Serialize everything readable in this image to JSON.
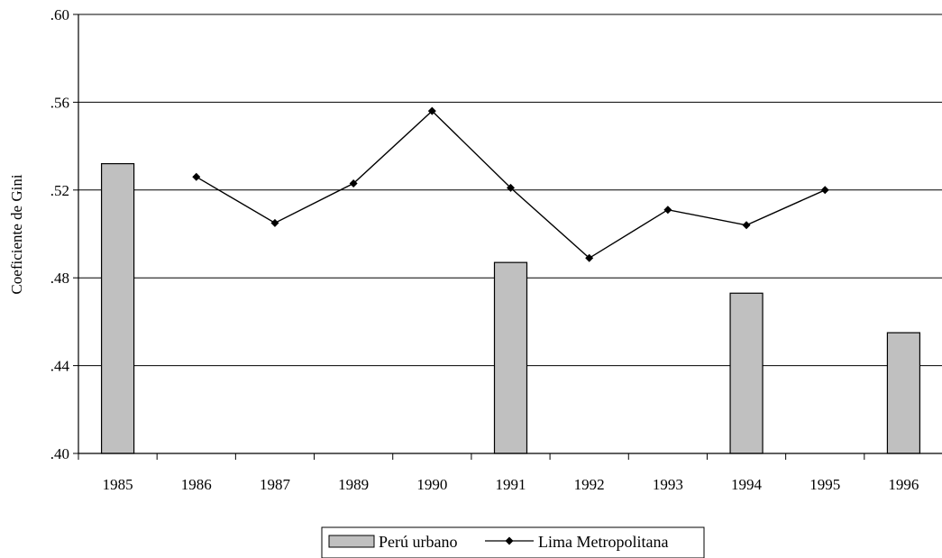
{
  "chart_data": {
    "type": "bar+line",
    "categories": [
      "1985",
      "1986",
      "1987",
      "1989",
      "1990",
      "1991",
      "1992",
      "1993",
      "1994",
      "1995",
      "1996"
    ],
    "ylabel": "Coeficiente de Gini",
    "ylim": [
      0.4,
      0.6
    ],
    "yticks": [
      ".40",
      ".44",
      ".48",
      ".52",
      ".56",
      ".60"
    ],
    "ytick_values": [
      0.4,
      0.44,
      0.48,
      0.52,
      0.56,
      0.6
    ],
    "grid": true,
    "legend_position": "bottom-center",
    "series": [
      {
        "name": "Perú urbano",
        "type": "bar",
        "color": "#c0c0c0",
        "values": [
          0.532,
          null,
          null,
          null,
          null,
          0.487,
          null,
          null,
          0.473,
          null,
          0.455
        ]
      },
      {
        "name": "Lima Metropolitana",
        "type": "line",
        "color": "#000000",
        "values": [
          null,
          0.526,
          0.505,
          0.523,
          0.556,
          0.521,
          0.489,
          0.511,
          0.504,
          0.52,
          null
        ]
      }
    ]
  }
}
